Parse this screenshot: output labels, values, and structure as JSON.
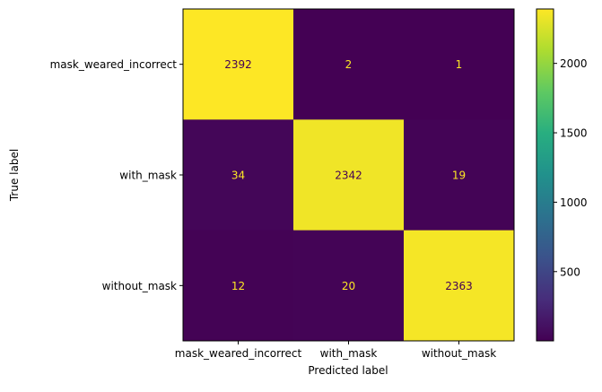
{
  "chart_data": {
    "type": "heatmap",
    "title": "",
    "xlabel": "Predicted label",
    "ylabel": "True label",
    "x_categories": [
      "mask_weared_incorrect",
      "with_mask",
      "without_mask"
    ],
    "y_categories": [
      "mask_weared_incorrect",
      "with_mask",
      "without_mask"
    ],
    "matrix": [
      [
        2392,
        2,
        1
      ],
      [
        34,
        2342,
        19
      ],
      [
        12,
        20,
        2363
      ]
    ],
    "colormap": "viridis",
    "value_range": [
      1,
      2392
    ],
    "colorbar_ticks": [
      "500",
      "1000",
      "1500",
      "2000"
    ],
    "grid": false
  }
}
